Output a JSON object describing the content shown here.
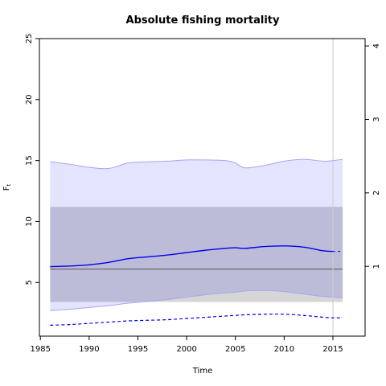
{
  "chart_data": {
    "type": "area",
    "title": "Absolute fishing mortality",
    "xlabel": "Time",
    "ylabel": "F",
    "ylabel_subscript": "t",
    "xlim": [
      1984.9,
      2018.3
    ],
    "ylim": [
      0.6,
      25
    ],
    "xticks": [
      1985,
      1990,
      1995,
      2000,
      2005,
      2010,
      2015
    ],
    "yticks": [
      5,
      10,
      15,
      20,
      25
    ],
    "right_axis": {
      "ylim": [
        0.05,
        4.1
      ],
      "ticks": [
        1,
        2,
        3,
        4
      ]
    },
    "colors": {
      "band": "#e4e4ff",
      "band_edge": "#a6a6ee",
      "rect": "#bcbcd8",
      "rect_lower_overlap": "#d6d6d6",
      "line": "#0000ee",
      "hline": "#555555",
      "vline": "#cccccc"
    },
    "vertical_line_x": 2015,
    "horizontal_line_y": 6.1,
    "rect": {
      "x": [
        1986,
        2016
      ],
      "y": [
        3.4,
        11.2
      ]
    },
    "x": [
      1986,
      1988,
      1990,
      1992,
      1994,
      1996,
      1998,
      2000,
      2002,
      2004,
      2005,
      2006,
      2008,
      2010,
      2012,
      2014,
      2015,
      2016
    ],
    "series": [
      {
        "role": "band_upper",
        "values": [
          14.9,
          14.7,
          14.45,
          14.35,
          14.8,
          14.9,
          14.95,
          15.05,
          15.05,
          15.0,
          14.8,
          14.4,
          14.6,
          14.95,
          15.1,
          14.95,
          15.0,
          15.1
        ]
      },
      {
        "role": "band_lower",
        "values": [
          2.7,
          2.8,
          2.95,
          3.1,
          3.3,
          3.45,
          3.6,
          3.8,
          4.0,
          4.15,
          4.2,
          4.3,
          4.35,
          4.25,
          4.05,
          3.85,
          3.8,
          3.75
        ]
      },
      {
        "role": "estimate",
        "values": [
          6.3,
          6.35,
          6.45,
          6.65,
          6.95,
          7.1,
          7.25,
          7.45,
          7.65,
          7.8,
          7.85,
          7.8,
          7.95,
          8.0,
          7.9,
          7.6,
          7.55,
          7.55
        ]
      },
      {
        "role": "dashed",
        "values": [
          1.5,
          1.55,
          1.65,
          1.75,
          1.85,
          1.9,
          1.95,
          2.05,
          2.15,
          2.25,
          2.3,
          2.35,
          2.4,
          2.4,
          2.3,
          2.15,
          2.1,
          2.1
        ]
      }
    ],
    "legend": "none",
    "grid": false
  }
}
